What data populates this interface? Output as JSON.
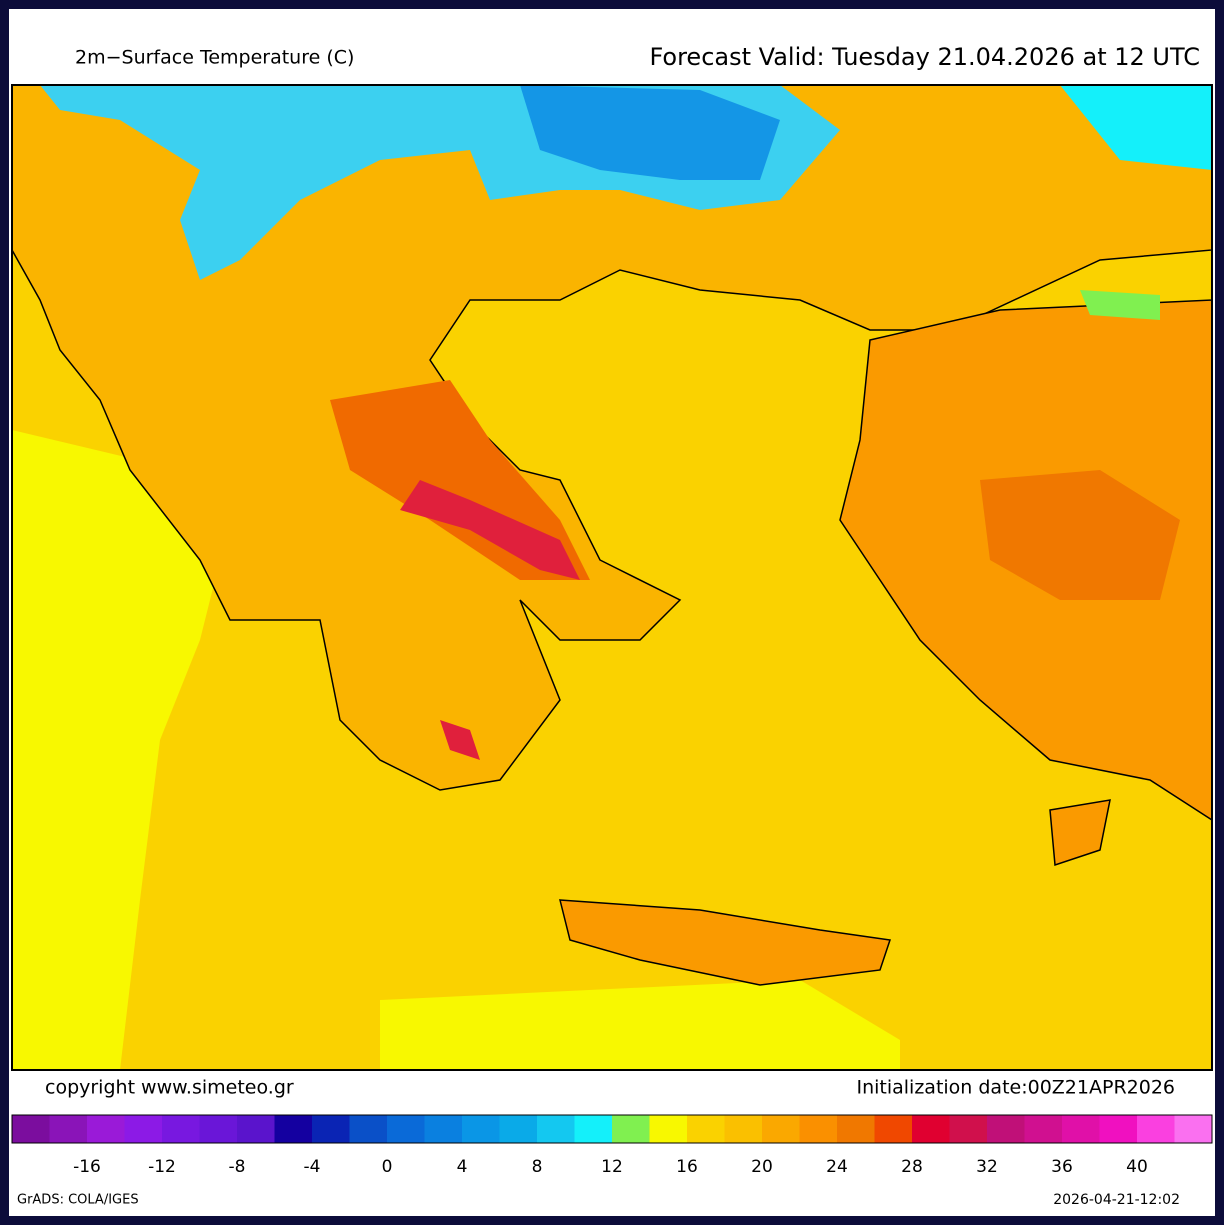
{
  "header": {
    "title": "2m−Surface Temperature (C)",
    "forecast": "Forecast Valid:  Tuesday 21.04.2026 at 12 UTC"
  },
  "footer": {
    "copyright": "copyright www.simeteo.gr",
    "init": "Initialization  date:00Z21APR2026",
    "grads": "GrADS: COLA/IGES",
    "timestamp": "2026-04-21-12:02"
  },
  "colorbar": {
    "range": [
      -20,
      44
    ],
    "colors": [
      "#7b0d9e",
      "#8a14b8",
      "#9a1ad8",
      "#8c1ae6",
      "#7818e0",
      "#6a16d8",
      "#5a14cc",
      "#1400a0",
      "#0a24b4",
      "#0a50c8",
      "#0a6ad8",
      "#0a80e0",
      "#0a96e6",
      "#0aaae8",
      "#14c8f0",
      "#14f0fa",
      "#80f050",
      "#f8f800",
      "#fad200",
      "#fac000",
      "#faa800",
      "#fa9000",
      "#f07800",
      "#f04800",
      "#e00030",
      "#d0104c",
      "#c01078",
      "#d01090",
      "#e010a8",
      "#f010c0",
      "#fa40e0",
      "#fa70f0"
    ],
    "ticks": [
      -16,
      -12,
      -8,
      -4,
      0,
      4,
      8,
      12,
      16,
      20,
      24,
      28,
      32,
      36,
      40
    ]
  }
}
